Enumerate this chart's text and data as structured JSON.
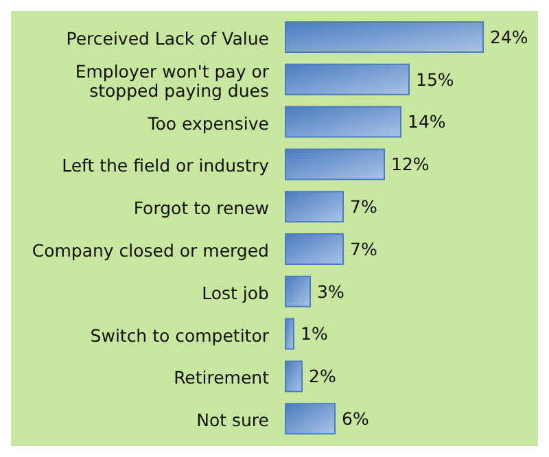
{
  "chart_data": {
    "type": "bar",
    "orientation": "horizontal",
    "categories": [
      "Perceived Lack of Value",
      "Employer won't pay or stopped paying dues",
      "Too expensive",
      "Left the field or industry",
      "Forgot to renew",
      "Company closed or merged",
      "Lost job",
      "Switch to competitor",
      "Retirement",
      "Not sure"
    ],
    "values": [
      24,
      15,
      14,
      12,
      7,
      7,
      3,
      1,
      2,
      6
    ],
    "value_labels": [
      "24%",
      "15%",
      "14%",
      "12%",
      "7%",
      "7%",
      "3%",
      "1%",
      "2%",
      "6%"
    ],
    "color": "#4a7cc0"
  }
}
